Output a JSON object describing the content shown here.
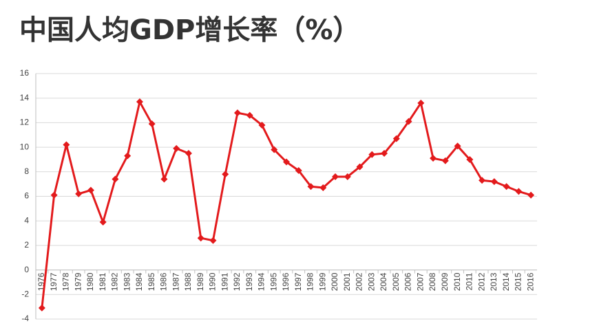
{
  "chart_data": {
    "type": "line",
    "title": "中国人均GDP增长率（%）",
    "categories": [
      "1976",
      "1977",
      "1978",
      "1979",
      "1980",
      "1981",
      "1982",
      "1983",
      "1984",
      "1985",
      "1986",
      "1987",
      "1988",
      "1989",
      "1990",
      "1991",
      "1992",
      "1993",
      "1994",
      "1995",
      "1996",
      "1997",
      "1998",
      "1999",
      "2000",
      "2001",
      "2002",
      "2003",
      "2004",
      "2005",
      "2006",
      "2007",
      "2008",
      "2009",
      "2010",
      "2011",
      "2012",
      "2013",
      "2014",
      "2015",
      "2016"
    ],
    "series": [
      {
        "name": "人均GDP增长率",
        "color": "#e31a1c",
        "values": [
          -3.1,
          6.1,
          10.2,
          6.2,
          6.5,
          3.9,
          7.4,
          9.3,
          13.7,
          11.9,
          7.4,
          9.9,
          9.5,
          2.6,
          2.4,
          7.8,
          12.8,
          12.6,
          11.8,
          9.8,
          8.8,
          8.1,
          6.8,
          6.7,
          7.6,
          7.6,
          8.4,
          9.4,
          9.5,
          10.7,
          12.1,
          13.6,
          9.1,
          8.9,
          10.1,
          9.0,
          7.3,
          7.2,
          6.8,
          6.4,
          6.1
        ]
      }
    ],
    "ylim": [
      -4,
      16
    ],
    "yticks": [
      -4,
      -2,
      0,
      2,
      4,
      6,
      8,
      10,
      12,
      14,
      16
    ],
    "grid": true
  }
}
